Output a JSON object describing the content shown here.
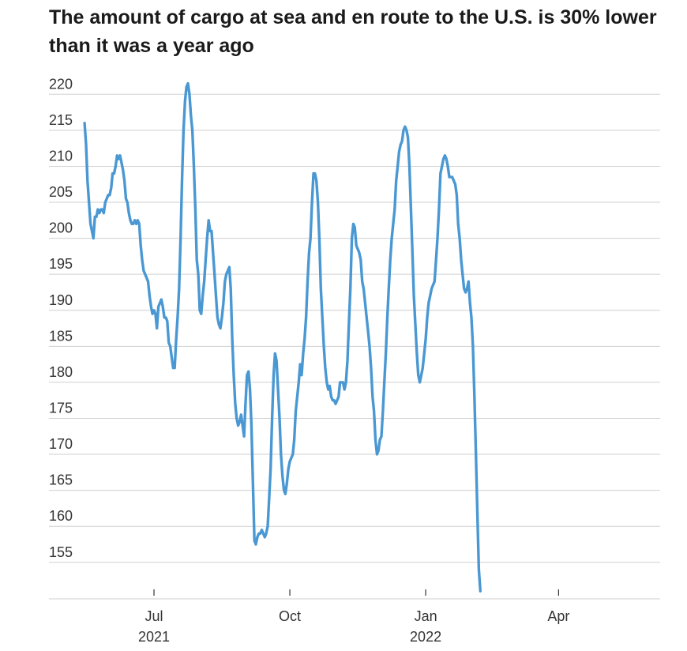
{
  "chart_data": {
    "type": "line",
    "title": "The amount of cargo at sea and en route to the U.S. is 30% lower than it was a year ago",
    "xlabel": "",
    "ylabel": "",
    "ylim": [
      150,
      223
    ],
    "yticks": [
      155,
      160,
      165,
      170,
      175,
      180,
      185,
      190,
      195,
      200,
      205,
      210,
      215,
      220
    ],
    "xticks": [
      {
        "label": "Jul",
        "sublabel": "2021",
        "day": 16
      },
      {
        "label": "Oct",
        "sublabel": "",
        "day": 108
      },
      {
        "label": "Jan",
        "sublabel": "2022",
        "day": 200
      },
      {
        "label": "Apr",
        "sublabel": "",
        "day": 290
      }
    ],
    "x_unit": "days since 2021-06-15",
    "legend": "none",
    "grid": "horizontal",
    "color": "#4a98d3",
    "series": [
      {
        "name": "Cargo at sea en route to the U.S.",
        "points": [
          [
            -31,
            216
          ],
          [
            -30,
            213
          ],
          [
            -29,
            208
          ],
          [
            -28,
            205
          ],
          [
            -27,
            202
          ],
          [
            -26,
            201
          ],
          [
            -25,
            200
          ],
          [
            -24,
            203
          ],
          [
            -23,
            203
          ],
          [
            -22,
            204
          ],
          [
            -21,
            203.5
          ],
          [
            -20,
            204
          ],
          [
            -19,
            204
          ],
          [
            -18,
            203.5
          ],
          [
            -17,
            205
          ],
          [
            -16,
            205.5
          ],
          [
            -15,
            206
          ],
          [
            -14,
            206
          ],
          [
            -13,
            207
          ],
          [
            -12,
            209
          ],
          [
            -11,
            209
          ],
          [
            -10,
            210
          ],
          [
            -9,
            211.5
          ],
          [
            -8,
            211
          ],
          [
            -7,
            211.5
          ],
          [
            -6,
            210.5
          ],
          [
            -5,
            209.5
          ],
          [
            -4,
            208
          ],
          [
            -3,
            205.5
          ],
          [
            -2,
            205
          ],
          [
            -1,
            203.5
          ],
          [
            0,
            202.5
          ],
          [
            1,
            202
          ],
          [
            2,
            202
          ],
          [
            3,
            202.5
          ],
          [
            4,
            202
          ],
          [
            5,
            202.5
          ],
          [
            6,
            202
          ],
          [
            7,
            199
          ],
          [
            8,
            197
          ],
          [
            9,
            195.5
          ],
          [
            10,
            195
          ],
          [
            11,
            194.5
          ],
          [
            12,
            194
          ],
          [
            13,
            192
          ],
          [
            14,
            190.5
          ],
          [
            15,
            189.5
          ],
          [
            16,
            190
          ],
          [
            17,
            189.5
          ],
          [
            18,
            187.5
          ],
          [
            19,
            190.5
          ],
          [
            20,
            191
          ],
          [
            21,
            191.5
          ],
          [
            22,
            190.5
          ],
          [
            23,
            189
          ],
          [
            24,
            189
          ],
          [
            25,
            188.5
          ],
          [
            26,
            185.5
          ],
          [
            27,
            185
          ],
          [
            28,
            183.5
          ],
          [
            29,
            182
          ],
          [
            30,
            182
          ],
          [
            31,
            186
          ],
          [
            32,
            189
          ],
          [
            33,
            193
          ],
          [
            34,
            200
          ],
          [
            35,
            208
          ],
          [
            36,
            215
          ],
          [
            37,
            219
          ],
          [
            38,
            221
          ],
          [
            39,
            221.5
          ],
          [
            40,
            220
          ],
          [
            41,
            217
          ],
          [
            42,
            215
          ],
          [
            43,
            210
          ],
          [
            44,
            204
          ],
          [
            45,
            197
          ],
          [
            46,
            195
          ],
          [
            47,
            190
          ],
          [
            48,
            189.5
          ],
          [
            49,
            192
          ],
          [
            50,
            194
          ],
          [
            51,
            197
          ],
          [
            52,
            200
          ],
          [
            53,
            202.5
          ],
          [
            54,
            201
          ],
          [
            55,
            201
          ],
          [
            56,
            198
          ],
          [
            57,
            195
          ],
          [
            58,
            192
          ],
          [
            59,
            189
          ],
          [
            60,
            188
          ],
          [
            61,
            187.5
          ],
          [
            62,
            189
          ],
          [
            63,
            191
          ],
          [
            64,
            194
          ],
          [
            65,
            195
          ],
          [
            66,
            195.5
          ],
          [
            67,
            196
          ],
          [
            68,
            193
          ],
          [
            69,
            186
          ],
          [
            70,
            181
          ],
          [
            71,
            177
          ],
          [
            72,
            175
          ],
          [
            73,
            174
          ],
          [
            74,
            174.5
          ],
          [
            75,
            175.5
          ],
          [
            76,
            174
          ],
          [
            77,
            172.5
          ],
          [
            78,
            177
          ],
          [
            79,
            181
          ],
          [
            80,
            181.5
          ],
          [
            81,
            179
          ],
          [
            82,
            174
          ],
          [
            83,
            166
          ],
          [
            84,
            158
          ],
          [
            85,
            157.5
          ],
          [
            86,
            158.5
          ],
          [
            87,
            159
          ],
          [
            88,
            159
          ],
          [
            89,
            159.5
          ],
          [
            90,
            159
          ],
          [
            91,
            158.5
          ],
          [
            92,
            159
          ],
          [
            93,
            160
          ],
          [
            94,
            164
          ],
          [
            95,
            168
          ],
          [
            96,
            175
          ],
          [
            97,
            181
          ],
          [
            98,
            184
          ],
          [
            99,
            183
          ],
          [
            100,
            179
          ],
          [
            101,
            175
          ],
          [
            102,
            170
          ],
          [
            103,
            167
          ],
          [
            104,
            165
          ],
          [
            105,
            164.5
          ],
          [
            106,
            166
          ],
          [
            107,
            168
          ],
          [
            108,
            169
          ],
          [
            109,
            169.5
          ],
          [
            110,
            170
          ],
          [
            111,
            172
          ],
          [
            112,
            176
          ],
          [
            113,
            178
          ],
          [
            114,
            180
          ],
          [
            115,
            182.5
          ],
          [
            116,
            181
          ],
          [
            117,
            184
          ],
          [
            118,
            186
          ],
          [
            119,
            189
          ],
          [
            120,
            194
          ],
          [
            121,
            198
          ],
          [
            122,
            200
          ],
          [
            123,
            205
          ],
          [
            124,
            209
          ],
          [
            125,
            209
          ],
          [
            126,
            208
          ],
          [
            127,
            205
          ],
          [
            128,
            200
          ],
          [
            129,
            193
          ],
          [
            130,
            189
          ],
          [
            131,
            185
          ],
          [
            132,
            182
          ],
          [
            133,
            180
          ],
          [
            134,
            179
          ],
          [
            135,
            179.5
          ],
          [
            136,
            178
          ],
          [
            137,
            177.5
          ],
          [
            138,
            177.5
          ],
          [
            139,
            177
          ],
          [
            140,
            177.5
          ],
          [
            141,
            178
          ],
          [
            142,
            180
          ],
          [
            143,
            180
          ],
          [
            144,
            180
          ],
          [
            145,
            179
          ],
          [
            146,
            180
          ],
          [
            147,
            183
          ],
          [
            148,
            188
          ],
          [
            149,
            193
          ],
          [
            150,
            200
          ],
          [
            151,
            202
          ],
          [
            152,
            201.5
          ],
          [
            153,
            199
          ],
          [
            154,
            198.5
          ],
          [
            155,
            198
          ],
          [
            156,
            197
          ],
          [
            157,
            194
          ],
          [
            158,
            193
          ],
          [
            159,
            191
          ],
          [
            160,
            189
          ],
          [
            161,
            187
          ],
          [
            162,
            185
          ],
          [
            163,
            182
          ],
          [
            164,
            178
          ],
          [
            165,
            176
          ],
          [
            166,
            172
          ],
          [
            167,
            170
          ],
          [
            168,
            170.5
          ],
          [
            169,
            172
          ],
          [
            170,
            172.5
          ],
          [
            171,
            176
          ],
          [
            172,
            180
          ],
          [
            173,
            184
          ],
          [
            174,
            189
          ],
          [
            175,
            193
          ],
          [
            176,
            197
          ],
          [
            177,
            200
          ],
          [
            178,
            202
          ],
          [
            179,
            204
          ],
          [
            180,
            208
          ],
          [
            181,
            210
          ],
          [
            182,
            212
          ],
          [
            183,
            213
          ],
          [
            184,
            213.5
          ],
          [
            185,
            215
          ],
          [
            186,
            215.5
          ],
          [
            187,
            215
          ],
          [
            188,
            214
          ],
          [
            189,
            210
          ],
          [
            190,
            204
          ],
          [
            191,
            198
          ],
          [
            192,
            192
          ],
          [
            193,
            188
          ],
          [
            194,
            184
          ],
          [
            195,
            181
          ],
          [
            196,
            180
          ],
          [
            197,
            181
          ],
          [
            198,
            182
          ],
          [
            199,
            184
          ],
          [
            200,
            186
          ],
          [
            201,
            189
          ],
          [
            202,
            191
          ],
          [
            203,
            192
          ],
          [
            204,
            193
          ],
          [
            205,
            193.5
          ],
          [
            206,
            194
          ],
          [
            207,
            197
          ],
          [
            208,
            200
          ],
          [
            209,
            204
          ],
          [
            210,
            209
          ],
          [
            211,
            210
          ],
          [
            212,
            211
          ],
          [
            213,
            211.5
          ],
          [
            214,
            211
          ],
          [
            215,
            210
          ],
          [
            216,
            208.5
          ],
          [
            217,
            208.5
          ],
          [
            218,
            208.5
          ],
          [
            219,
            208
          ],
          [
            220,
            207.5
          ],
          [
            221,
            206
          ],
          [
            222,
            202
          ],
          [
            223,
            200
          ],
          [
            224,
            197
          ],
          [
            225,
            195
          ],
          [
            226,
            193
          ],
          [
            227,
            192.5
          ],
          [
            228,
            193
          ],
          [
            229,
            194
          ],
          [
            230,
            191
          ],
          [
            231,
            189
          ],
          [
            232,
            185
          ],
          [
            233,
            178
          ],
          [
            234,
            170
          ],
          [
            235,
            162
          ],
          [
            236,
            154
          ],
          [
            237,
            151
          ]
        ]
      }
    ]
  }
}
